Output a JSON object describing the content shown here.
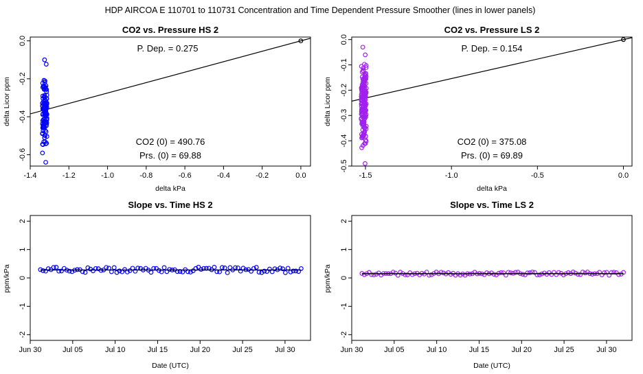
{
  "figure": {
    "title": "HDP    AIRCOA E    110701 to 110731    Concentration and Time Dependent Pressure Smoother (lines in lower panels)"
  },
  "chart_data": [
    {
      "id": "hs2_pressure",
      "type": "scatter",
      "title": "CO2 vs. Pressure HS 2",
      "xlabel": "delta kPa",
      "ylabel": "delta Licor ppm",
      "xlim": [
        -1.4,
        0.05
      ],
      "ylim": [
        -0.66,
        0.02
      ],
      "xticks": [
        -1.4,
        -1.2,
        -1.0,
        -0.8,
        -0.6,
        -0.4,
        -0.2,
        0.0
      ],
      "xtick_labels": [
        "-1.4",
        "-1.2",
        "-1.0",
        "-0.8",
        "-0.6",
        "-0.4",
        "-0.2",
        "0.0"
      ],
      "yticks": [
        0.0,
        -0.2,
        -0.4,
        -0.6
      ],
      "ytick_labels": [
        "0.0",
        "-0.2",
        "-0.4",
        "-0.6"
      ],
      "point_color": "#0000ff",
      "annotations": {
        "p_dep": "P. Dep. =  0.275",
        "co2_zero": "CO2 (0) =  490.76",
        "prs_zero": "Prs. (0) =  69.88"
      },
      "fit_line": {
        "slope": 0.275,
        "intercept": 0.0
      },
      "reference_point": {
        "x": 0.0,
        "y": 0.0
      },
      "cluster": {
        "x_center": -1.325,
        "x_spread": 0.012,
        "y_min": -0.64,
        "y_max": -0.1,
        "count": 130
      }
    },
    {
      "id": "ls2_pressure",
      "type": "scatter",
      "title": "CO2 vs. Pressure LS 2",
      "xlabel": "delta kPa",
      "ylabel": "delta Licor ppm",
      "xlim": [
        -1.58,
        0.05
      ],
      "ylim": [
        -0.5,
        0.01
      ],
      "xticks": [
        -1.5,
        -1.0,
        -0.5,
        0.0
      ],
      "xtick_labels": [
        "-1.5",
        "-1.0",
        "-0.5",
        "0.0"
      ],
      "yticks": [
        0.0,
        -0.1,
        -0.2,
        -0.3,
        -0.4,
        -0.5
      ],
      "ytick_labels": [
        "0.0",
        "-0.1",
        "-0.2",
        "-0.3",
        "-0.4",
        "-0.5"
      ],
      "point_color": "#a020f0",
      "annotations": {
        "p_dep": "P. Dep. =  0.154",
        "co2_zero": "CO2 (0) =  375.08",
        "prs_zero": "Prs. (0) =  69.89"
      },
      "fit_line": {
        "slope": 0.154,
        "intercept": 0.0
      },
      "reference_point": {
        "x": 0.0,
        "y": 0.0
      },
      "cluster": {
        "x_center": -1.51,
        "x_spread": 0.015,
        "y_min": -0.49,
        "y_max": -0.03,
        "count": 180
      }
    },
    {
      "id": "hs2_time",
      "type": "scatter",
      "title": "Slope vs. Time HS 2",
      "xlabel": "Date (UTC)",
      "ylabel": "ppm/kPa",
      "x_unit": "days since Jun 30",
      "xlim": [
        0,
        33
      ],
      "ylim": [
        -2.2,
        2.2
      ],
      "xticks": [
        0,
        5,
        10,
        15,
        20,
        25,
        30
      ],
      "xtick_labels": [
        "Jun 30",
        "Jul 05",
        "Jul 10",
        "Jul 15",
        "Jul 20",
        "Jul 25",
        "Jul 30"
      ],
      "yticks": [
        -2,
        -1,
        0,
        1,
        2
      ],
      "ytick_labels": [
        "-2",
        "-1",
        "0",
        "1",
        "2"
      ],
      "point_color": "#0000ff",
      "smoother_value": 0.28,
      "x_range": [
        1.2,
        31.9
      ],
      "count": 100,
      "y_center": 0.28,
      "y_spread": 0.1
    },
    {
      "id": "ls2_time",
      "type": "scatter",
      "title": "Slope vs. Time LS 2",
      "xlabel": "Date (UTC)",
      "ylabel": "ppm/kPa",
      "x_unit": "days since Jun 30",
      "xlim": [
        0,
        33
      ],
      "ylim": [
        -2.2,
        2.2
      ],
      "xticks": [
        0,
        5,
        10,
        15,
        20,
        25,
        30
      ],
      "xtick_labels": [
        "Jun 30",
        "Jul 05",
        "Jul 10",
        "Jul 15",
        "Jul 20",
        "Jul 25",
        "Jul 30"
      ],
      "yticks": [
        -2,
        -1,
        0,
        1,
        2
      ],
      "ytick_labels": [
        "-2",
        "-1",
        "0",
        "1",
        "2"
      ],
      "point_color": "#a020f0",
      "smoother_value": 0.15,
      "x_range": [
        1.2,
        32.0
      ],
      "count": 110,
      "y_center": 0.15,
      "y_spread": 0.06
    }
  ]
}
